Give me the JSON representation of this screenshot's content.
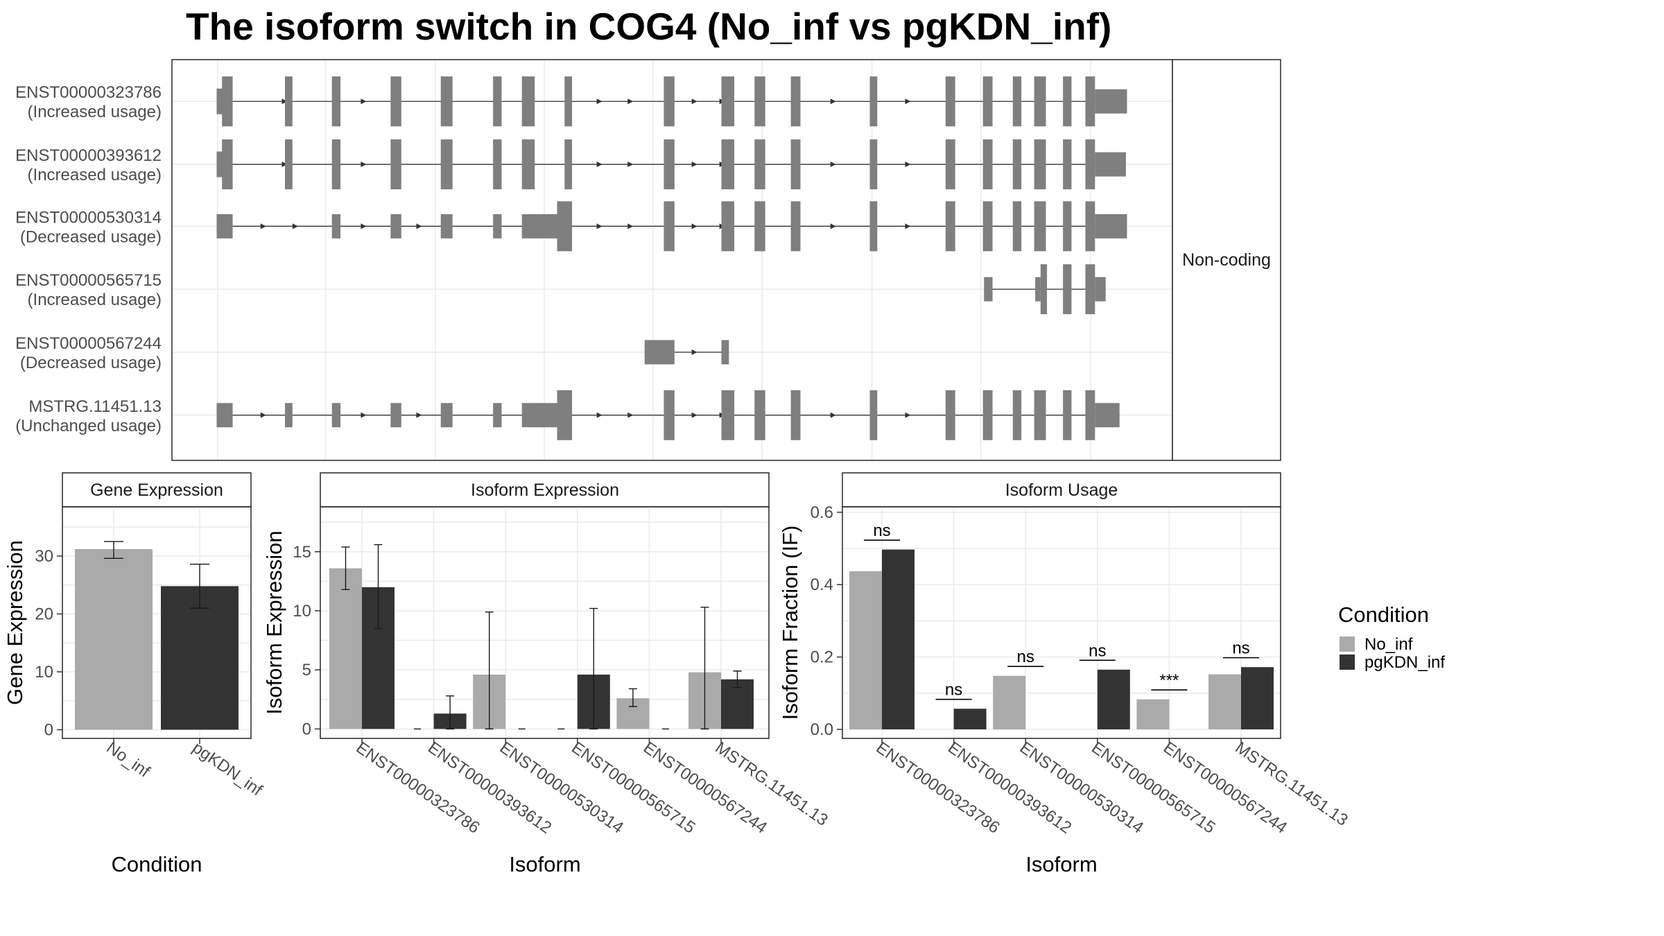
{
  "title": "The isoform switch in COG4 (No_inf vs pgKDN_inf)",
  "colors": {
    "No_inf": "#aaaaaa",
    "pgKDN_inf": "#333333",
    "exon": "#7f7f7f"
  },
  "structure": {
    "coding_label": "Non-coding",
    "transcripts": [
      {
        "id": "ENST00000323786",
        "usage": "(Increased usage)",
        "exons": [
          [
            203,
            212,
            "s"
          ],
          [
            208,
            218,
            "l"
          ],
          [
            267,
            274,
            "l"
          ],
          [
            311,
            319,
            "l"
          ],
          [
            366,
            376,
            "l"
          ],
          [
            413,
            424,
            "l"
          ],
          [
            462,
            470,
            "l"
          ],
          [
            489,
            501,
            "l"
          ],
          [
            529,
            536,
            "l"
          ],
          [
            622,
            632,
            "l"
          ],
          [
            676,
            688,
            "l"
          ],
          [
            707,
            717,
            "l"
          ],
          [
            741,
            750,
            "l"
          ],
          [
            815,
            822,
            "l"
          ],
          [
            886,
            895,
            "l"
          ],
          [
            921,
            930,
            "l"
          ],
          [
            949,
            957,
            "l"
          ],
          [
            969,
            980,
            "l"
          ],
          [
            996,
            1004,
            "l"
          ],
          [
            1017,
            1026,
            "l"
          ],
          [
            1026,
            1056,
            "m"
          ]
        ],
        "arrows": [
          268,
          342,
          563,
          592,
          652,
          678,
          782,
          852
        ]
      },
      {
        "id": "ENST00000393612",
        "usage": "(Increased usage)",
        "exons": [
          [
            203,
            212,
            "s"
          ],
          [
            208,
            218,
            "l"
          ],
          [
            267,
            274,
            "l"
          ],
          [
            311,
            319,
            "l"
          ],
          [
            366,
            376,
            "l"
          ],
          [
            413,
            424,
            "l"
          ],
          [
            462,
            470,
            "l"
          ],
          [
            489,
            501,
            "l"
          ],
          [
            529,
            536,
            "l"
          ],
          [
            622,
            632,
            "l"
          ],
          [
            676,
            688,
            "l"
          ],
          [
            707,
            717,
            "l"
          ],
          [
            741,
            750,
            "l"
          ],
          [
            815,
            822,
            "l"
          ],
          [
            886,
            895,
            "l"
          ],
          [
            921,
            930,
            "l"
          ],
          [
            949,
            957,
            "l"
          ],
          [
            969,
            980,
            "l"
          ],
          [
            996,
            1004,
            "l"
          ],
          [
            1017,
            1026,
            "l"
          ],
          [
            1026,
            1055,
            "m"
          ]
        ],
        "arrows": [
          268,
          342,
          563,
          592,
          652,
          678,
          782,
          852
        ]
      },
      {
        "id": "ENST00000530314",
        "usage": "(Decreased usage)",
        "exons": [
          [
            203,
            218,
            "m"
          ],
          [
            311,
            319,
            "m"
          ],
          [
            366,
            376,
            "m"
          ],
          [
            413,
            424,
            "m"
          ],
          [
            462,
            470,
            "m"
          ],
          [
            489,
            522,
            "m"
          ],
          [
            522,
            536,
            "l"
          ],
          [
            622,
            632,
            "l"
          ],
          [
            676,
            688,
            "l"
          ],
          [
            707,
            717,
            "l"
          ],
          [
            741,
            750,
            "l"
          ],
          [
            815,
            822,
            "l"
          ],
          [
            886,
            895,
            "l"
          ],
          [
            921,
            930,
            "l"
          ],
          [
            949,
            957,
            "l"
          ],
          [
            969,
            980,
            "l"
          ],
          [
            996,
            1004,
            "l"
          ],
          [
            1017,
            1026,
            "l"
          ],
          [
            1026,
            1056,
            "m"
          ]
        ],
        "arrows": [
          248,
          278,
          342,
          394,
          563,
          592,
          652,
          678,
          782,
          852
        ]
      },
      {
        "id": "ENST00000565715",
        "usage": "(Increased usage)",
        "exons": [
          [
            922,
            930,
            "m"
          ],
          [
            970,
            975,
            "m"
          ],
          [
            975,
            981,
            "l"
          ],
          [
            996,
            1004,
            "l"
          ],
          [
            1017,
            1026,
            "l"
          ],
          [
            1026,
            1036,
            "m"
          ]
        ],
        "arrows": []
      },
      {
        "id": "ENST00000567244",
        "usage": "(Decreased usage)",
        "exons": [
          [
            604,
            632,
            "m"
          ],
          [
            676,
            683,
            "m"
          ]
        ],
        "arrows": [
          652
        ]
      },
      {
        "id": "MSTRG.11451.13",
        "usage": "(Unchanged usage)",
        "exons": [
          [
            203,
            218,
            "m"
          ],
          [
            267,
            274,
            "m"
          ],
          [
            311,
            319,
            "m"
          ],
          [
            366,
            376,
            "m"
          ],
          [
            413,
            424,
            "m"
          ],
          [
            462,
            470,
            "m"
          ],
          [
            489,
            522,
            "m"
          ],
          [
            522,
            536,
            "l"
          ],
          [
            622,
            632,
            "l"
          ],
          [
            676,
            688,
            "l"
          ],
          [
            707,
            717,
            "l"
          ],
          [
            741,
            750,
            "l"
          ],
          [
            815,
            822,
            "l"
          ],
          [
            886,
            895,
            "l"
          ],
          [
            921,
            930,
            "l"
          ],
          [
            949,
            957,
            "l"
          ],
          [
            969,
            980,
            "l"
          ],
          [
            996,
            1004,
            "l"
          ],
          [
            1017,
            1026,
            "l"
          ],
          [
            1026,
            1049,
            "m"
          ]
        ],
        "arrows": [
          248,
          342,
          394,
          563,
          592,
          652,
          678,
          782,
          852
        ]
      }
    ]
  },
  "chart_data": [
    {
      "type": "bar",
      "panel": "Gene Expression",
      "categories": [
        "No_inf",
        "pgKDN_inf"
      ],
      "values": [
        31.2,
        24.8
      ],
      "error_low": [
        29.6,
        21.0
      ],
      "error_high": [
        32.5,
        28.6
      ],
      "xlabel": "Condition",
      "ylabel": "Gene Expression",
      "ylim": [
        -1.5,
        38.5
      ],
      "yticks": [
        0,
        10,
        20,
        30
      ]
    },
    {
      "type": "bar",
      "panel": "Isoform Expression",
      "categories": [
        "ENST00000323786",
        "ENST00000393612",
        "ENST00000530314",
        "ENST00000565715",
        "ENST00000567244",
        "MSTRG.11451.13"
      ],
      "series": [
        {
          "name": "No_inf",
          "values": [
            13.6,
            0,
            4.6,
            0,
            2.6,
            4.8
          ],
          "error_low": [
            11.8,
            0,
            0,
            0,
            1.9,
            0
          ],
          "error_high": [
            15.4,
            0,
            9.9,
            0,
            3.4,
            10.3
          ]
        },
        {
          "name": "pgKDN_inf",
          "values": [
            12.0,
            1.3,
            0,
            4.6,
            0,
            4.2
          ],
          "error_low": [
            8.5,
            0,
            0,
            0,
            0,
            3.5
          ],
          "error_high": [
            15.6,
            2.8,
            0,
            10.2,
            0,
            4.9
          ]
        }
      ],
      "xlabel": "Isoform",
      "ylabel": "Isoform Expression",
      "ylim": [
        -0.8,
        18.8
      ],
      "yticks": [
        0,
        5,
        10,
        15
      ]
    },
    {
      "type": "bar",
      "panel": "Isoform Usage",
      "categories": [
        "ENST00000323786",
        "ENST00000393612",
        "ENST00000530314",
        "ENST00000565715",
        "ENST00000567244",
        "MSTRG.11451.13"
      ],
      "series": [
        {
          "name": "No_inf",
          "values": [
            0.437,
            0,
            0.148,
            0,
            0.083,
            0.152
          ]
        },
        {
          "name": "pgKDN_inf",
          "values": [
            0.497,
            0.057,
            0,
            0.165,
            0,
            0.172
          ]
        }
      ],
      "significance": [
        {
          "label": "ns",
          "y": 0.523
        },
        {
          "label": "ns",
          "y": 0.083
        },
        {
          "label": "ns",
          "y": 0.174
        },
        {
          "label": "ns",
          "y": 0.191
        },
        {
          "label": "***",
          "y": 0.109
        },
        {
          "label": "ns",
          "y": 0.198
        }
      ],
      "xlabel": "Isoform",
      "ylabel": "Isoform Fraction (IF)",
      "ylim": [
        -0.025,
        0.615
      ],
      "yticks": [
        0.0,
        0.2,
        0.4,
        0.6
      ],
      "ytick_labels": [
        "0.0",
        "0.2",
        "0.4",
        "0.6"
      ]
    }
  ],
  "legend": {
    "title": "Condition",
    "items": [
      {
        "name": "No_inf",
        "color": "#aaaaaa"
      },
      {
        "name": "pgKDN_inf",
        "color": "#333333"
      }
    ]
  }
}
